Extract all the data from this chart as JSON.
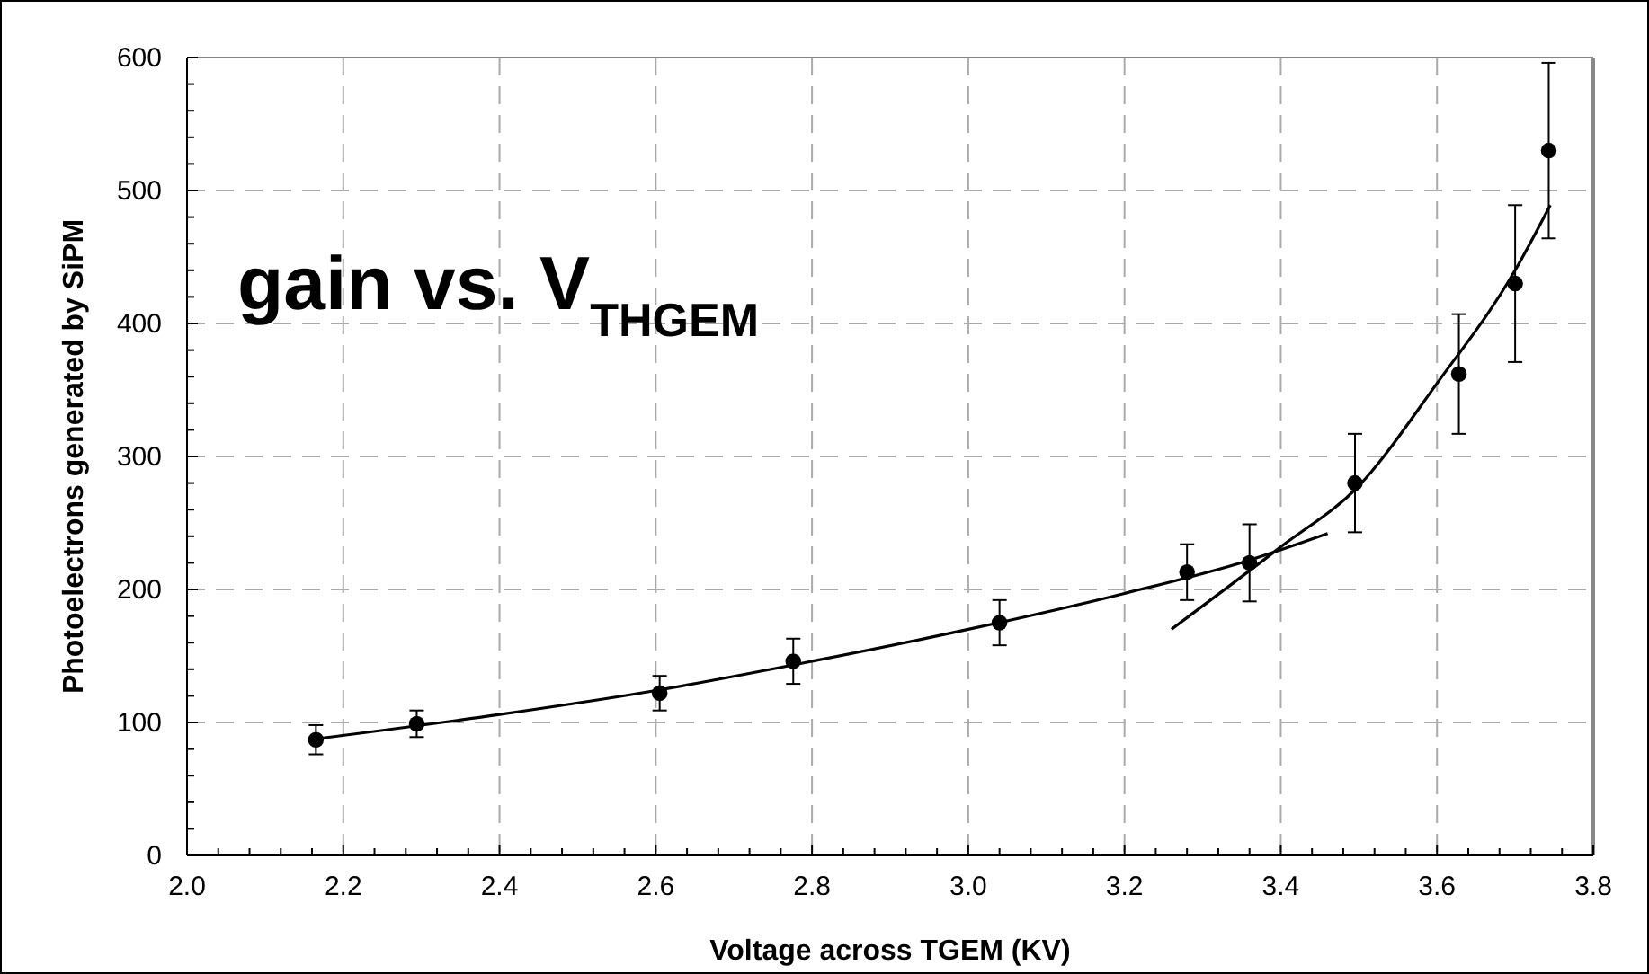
{
  "chart_data": {
    "type": "scatter",
    "title": "gain vs. V$_{THGEM}$",
    "xlabel": "Voltage across TGEM (KV)",
    "ylabel": "Photoelectrons generated by SiPM",
    "xlim": [
      2.0,
      3.8
    ],
    "ylim": [
      0,
      600
    ],
    "xticks": [
      {
        "value": 2.0,
        "label": "2.0"
      },
      {
        "value": 2.04,
        "label": null
      },
      {
        "value": 2.08,
        "label": null
      },
      {
        "value": 2.12,
        "label": null
      },
      {
        "value": 2.16,
        "label": null
      },
      {
        "value": 2.2,
        "label": "2.2"
      },
      {
        "value": 2.24,
        "label": null
      },
      {
        "value": 2.28,
        "label": null
      },
      {
        "value": 2.32,
        "label": null
      },
      {
        "value": 2.36,
        "label": null
      },
      {
        "value": 2.4,
        "label": "2.4"
      },
      {
        "value": 2.44,
        "label": null
      },
      {
        "value": 2.48,
        "label": null
      },
      {
        "value": 2.52,
        "label": null
      },
      {
        "value": 2.56,
        "label": null
      },
      {
        "value": 2.6,
        "label": "2.6"
      },
      {
        "value": 2.64,
        "label": null
      },
      {
        "value": 2.68,
        "label": null
      },
      {
        "value": 2.72,
        "label": null
      },
      {
        "value": 2.76,
        "label": null
      },
      {
        "value": 2.8,
        "label": "2.8"
      },
      {
        "value": 2.84,
        "label": null
      },
      {
        "value": 2.88,
        "label": null
      },
      {
        "value": 2.92,
        "label": null
      },
      {
        "value": 2.96,
        "label": null
      },
      {
        "value": 3.0,
        "label": "3.0"
      },
      {
        "value": 3.04,
        "label": null
      },
      {
        "value": 3.08,
        "label": null
      },
      {
        "value": 3.12,
        "label": null
      },
      {
        "value": 3.16,
        "label": null
      },
      {
        "value": 3.2,
        "label": "3.2"
      },
      {
        "value": 3.24,
        "label": null
      },
      {
        "value": 3.28,
        "label": null
      },
      {
        "value": 3.32,
        "label": null
      },
      {
        "value": 3.36,
        "label": null
      },
      {
        "value": 3.4,
        "label": "3.4"
      },
      {
        "value": 3.44,
        "label": null
      },
      {
        "value": 3.48,
        "label": null
      },
      {
        "value": 3.52,
        "label": null
      },
      {
        "value": 3.56,
        "label": null
      },
      {
        "value": 3.6,
        "label": "3.6"
      },
      {
        "value": 3.64,
        "label": null
      },
      {
        "value": 3.68,
        "label": null
      },
      {
        "value": 3.72,
        "label": null
      },
      {
        "value": 3.76,
        "label": null
      },
      {
        "value": 3.8,
        "label": "3.8"
      }
    ],
    "yticks": [
      0,
      {
        "value": 20,
        "label": null
      },
      {
        "value": 40,
        "label": null
      },
      {
        "value": 60,
        "label": null
      },
      {
        "value": 80,
        "label": null
      },
      100,
      {
        "value": 120,
        "label": null
      },
      {
        "value": 140,
        "label": null
      },
      {
        "value": 160,
        "label": null
      },
      {
        "value": 180,
        "label": null
      },
      200,
      {
        "value": 220,
        "label": null
      },
      {
        "value": 240,
        "label": null
      },
      {
        "value": 260,
        "label": null
      },
      {
        "value": 280,
        "label": null
      },
      300,
      {
        "value": 320,
        "label": null
      },
      {
        "value": 340,
        "label": null
      },
      {
        "value": 360,
        "label": null
      },
      {
        "value": 380,
        "label": null
      },
      400,
      {
        "value": 420,
        "label": null
      },
      {
        "value": 440,
        "label": null
      },
      {
        "value": 460,
        "label": null
      },
      {
        "value": 480,
        "label": null
      },
      500,
      {
        "value": 520,
        "label": null
      },
      {
        "value": 540,
        "label": null
      },
      {
        "value": 560,
        "label": null
      },
      {
        "value": 580,
        "label": null
      },
      600
    ],
    "grid": true,
    "series": [
      {
        "color": "#000000",
        "marker": "circle",
        "x": [
          2.165,
          2.294,
          2.605,
          2.776,
          3.04,
          3.28,
          3.36,
          3.495,
          3.628,
          3.7,
          3.743
        ],
        "values": [
          87,
          99,
          122,
          146,
          175,
          213,
          220,
          280,
          362,
          430,
          530
        ],
        "errors": [
          11,
          10,
          13,
          17,
          17,
          21,
          29,
          37,
          45,
          59,
          66
        ]
      },
      {
        "type": "line",
        "color": "#000000",
        "line_style": "solid",
        "x": [
          2.17,
          2.4,
          2.6,
          2.8,
          3.0,
          3.2,
          3.36,
          3.46
        ],
        "values": [
          88,
          106,
          124,
          146,
          170,
          197,
          222,
          242
        ]
      },
      {
        "type": "line",
        "color": "#000000",
        "line_style": "solid",
        "x": [
          3.26,
          3.4,
          3.5,
          3.6,
          3.7,
          3.745
        ],
        "values": [
          170,
          232,
          278,
          355,
          440,
          489
        ]
      }
    ]
  }
}
